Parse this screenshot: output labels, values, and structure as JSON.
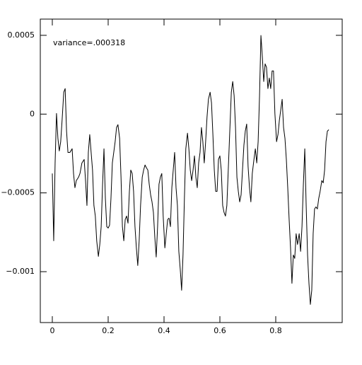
{
  "chart_data": {
    "type": "line",
    "annotation": "variance=.000318",
    "color": "#000000",
    "xlim": [
      -0.043,
      1.038
    ],
    "ylim": [
      -0.001323,
      0.000603
    ],
    "xticks": [
      0,
      0.2,
      0.4,
      0.6,
      0.8
    ],
    "yticks": [
      0.0005,
      0,
      {
        "value": -0.0005,
        "label": "−0.0005"
      },
      {
        "value": -0.001,
        "label": "−0.001"
      }
    ],
    "x": [
      0.0,
      0.005,
      0.01,
      0.015,
      0.02,
      0.025,
      0.03,
      0.035,
      0.041,
      0.046,
      0.051,
      0.056,
      0.063,
      0.071,
      0.076,
      0.081,
      0.086,
      0.094,
      0.099,
      0.106,
      0.114,
      0.119,
      0.124,
      0.129,
      0.134,
      0.139,
      0.144,
      0.149,
      0.154,
      0.159,
      0.165,
      0.17,
      0.175,
      0.18,
      0.185,
      0.19,
      0.195,
      0.2,
      0.205,
      0.21,
      0.215,
      0.22,
      0.225,
      0.23,
      0.235,
      0.241,
      0.246,
      0.251,
      0.256,
      0.261,
      0.266,
      0.271,
      0.276,
      0.281,
      0.286,
      0.291,
      0.296,
      0.301,
      0.306,
      0.311,
      0.316,
      0.322,
      0.327,
      0.332,
      0.337,
      0.342,
      0.347,
      0.352,
      0.357,
      0.362,
      0.367,
      0.372,
      0.377,
      0.382,
      0.387,
      0.392,
      0.397,
      0.403,
      0.408,
      0.413,
      0.418,
      0.423,
      0.428,
      0.433,
      0.438,
      0.443,
      0.448,
      0.453,
      0.458,
      0.463,
      0.468,
      0.473,
      0.478,
      0.484,
      0.489,
      0.494,
      0.499,
      0.504,
      0.509,
      0.514,
      0.519,
      0.524,
      0.529,
      0.534,
      0.539,
      0.544,
      0.549,
      0.554,
      0.559,
      0.565,
      0.57,
      0.575,
      0.58,
      0.585,
      0.59,
      0.595,
      0.6,
      0.605,
      0.61,
      0.615,
      0.62,
      0.625,
      0.63,
      0.635,
      0.641,
      0.646,
      0.651,
      0.656,
      0.661,
      0.666,
      0.671,
      0.676,
      0.681,
      0.686,
      0.691,
      0.696,
      0.701,
      0.706,
      0.711,
      0.716,
      0.722,
      0.727,
      0.732,
      0.737,
      0.742,
      0.747,
      0.752,
      0.757,
      0.762,
      0.767,
      0.772,
      0.777,
      0.782,
      0.787,
      0.792,
      0.797,
      0.803,
      0.808,
      0.813,
      0.818,
      0.823,
      0.828,
      0.833,
      0.838,
      0.843,
      0.848,
      0.853,
      0.858,
      0.863,
      0.868,
      0.873,
      0.878,
      0.884,
      0.889,
      0.894,
      0.899,
      0.904,
      0.909,
      0.914,
      0.919,
      0.924,
      0.929,
      0.934,
      0.939,
      0.944,
      0.949,
      0.954,
      0.959,
      0.965,
      0.97,
      0.975,
      0.98,
      0.985,
      0.99
    ],
    "values": [
      -0.000377,
      -0.000804,
      -0.00031,
      4e-06,
      -0.000153,
      -0.000234,
      -0.000175,
      -4e-05,
      0.000139,
      0.000162,
      -0.000108,
      -0.000243,
      -0.000243,
      -0.00022,
      -0.000377,
      -0.000467,
      -0.000422,
      -0.0004,
      -0.000377,
      -0.00031,
      -0.000288,
      -0.000422,
      -0.00058,
      -0.000243,
      -0.00013,
      -0.000243,
      -0.000355,
      -0.00058,
      -0.000647,
      -0.000804,
      -0.000903,
      -0.000827,
      -0.000714,
      -0.000445,
      -0.00022,
      -0.000535,
      -0.000714,
      -0.000723,
      -0.000705,
      -0.000535,
      -0.00031,
      -0.000243,
      -0.000175,
      -8.5e-05,
      -6.7e-05,
      -0.000153,
      -0.0004,
      -0.000714,
      -0.000804,
      -0.000669,
      -0.000647,
      -0.000692,
      -0.00049,
      -0.000355,
      -0.000377,
      -0.00049,
      -0.000714,
      -0.000849,
      -0.000961,
      -0.000804,
      -0.00058,
      -0.0004,
      -0.000355,
      -0.000323,
      -0.000341,
      -0.000355,
      -0.000445,
      -0.000512,
      -0.000557,
      -0.000624,
      -0.000781,
      -0.000907,
      -0.000714,
      -0.000445,
      -0.0004,
      -0.000377,
      -0.000647,
      -0.000849,
      -0.000759,
      -0.000669,
      -0.00066,
      -0.000714,
      -0.000467,
      -0.000355,
      -0.000243,
      -0.000467,
      -0.00058,
      -0.000871,
      -0.000983,
      -0.001118,
      -0.000894,
      -0.000535,
      -0.00022,
      -0.000121,
      -0.00022,
      -0.000355,
      -0.000422,
      -0.000355,
      -0.000265,
      -0.0004,
      -0.000467,
      -0.00031,
      -0.000243,
      -8.5e-05,
      -0.000175,
      -0.00031,
      -0.000175,
      -1.8e-05,
      9.4e-05,
      0.000139,
      7.2e-05,
      -0.00013,
      -0.000355,
      -0.00049,
      -0.00049,
      -0.000288,
      -0.000265,
      -0.000355,
      -0.00058,
      -0.000624,
      -0.000647,
      -0.00058,
      -0.000355,
      -0.00013,
      0.000139,
      0.000207,
      0.000117,
      -8.5e-05,
      -0.0004,
      -0.00049,
      -0.000557,
      -0.000512,
      -0.000355,
      -0.000198,
      -0.000108,
      -6.3e-05,
      -0.000332,
      -0.000467,
      -0.000557,
      -0.000377,
      -0.000288,
      -0.00022,
      -0.00031,
      -0.000175,
      0.000117,
      0.000499,
      0.000364,
      0.000207,
      0.000319,
      0.000297,
      0.000162,
      0.000229,
      0.000162,
      0.000274,
      0.000274,
      4e-06,
      -0.000175,
      -0.00013,
      -4e-05,
      2.7e-05,
      9.4e-05,
      -8.5e-05,
      -0.000153,
      -0.000288,
      -0.000467,
      -0.000669,
      -0.000849,
      -0.001074,
      -0.000894,
      -0.000916,
      -0.000759,
      -0.000827,
      -0.000759,
      -0.000871,
      -0.000714,
      -0.000445,
      -0.00022,
      -0.00058,
      -0.000894,
      -0.001074,
      -0.001208,
      -0.001118,
      -0.000759,
      -0.000602,
      -0.000589,
      -0.000602,
      -0.000535,
      -0.00049,
      -0.000422,
      -0.000436,
      -0.000355,
      -0.000175,
      -0.000108,
      -9.9e-05
    ]
  }
}
